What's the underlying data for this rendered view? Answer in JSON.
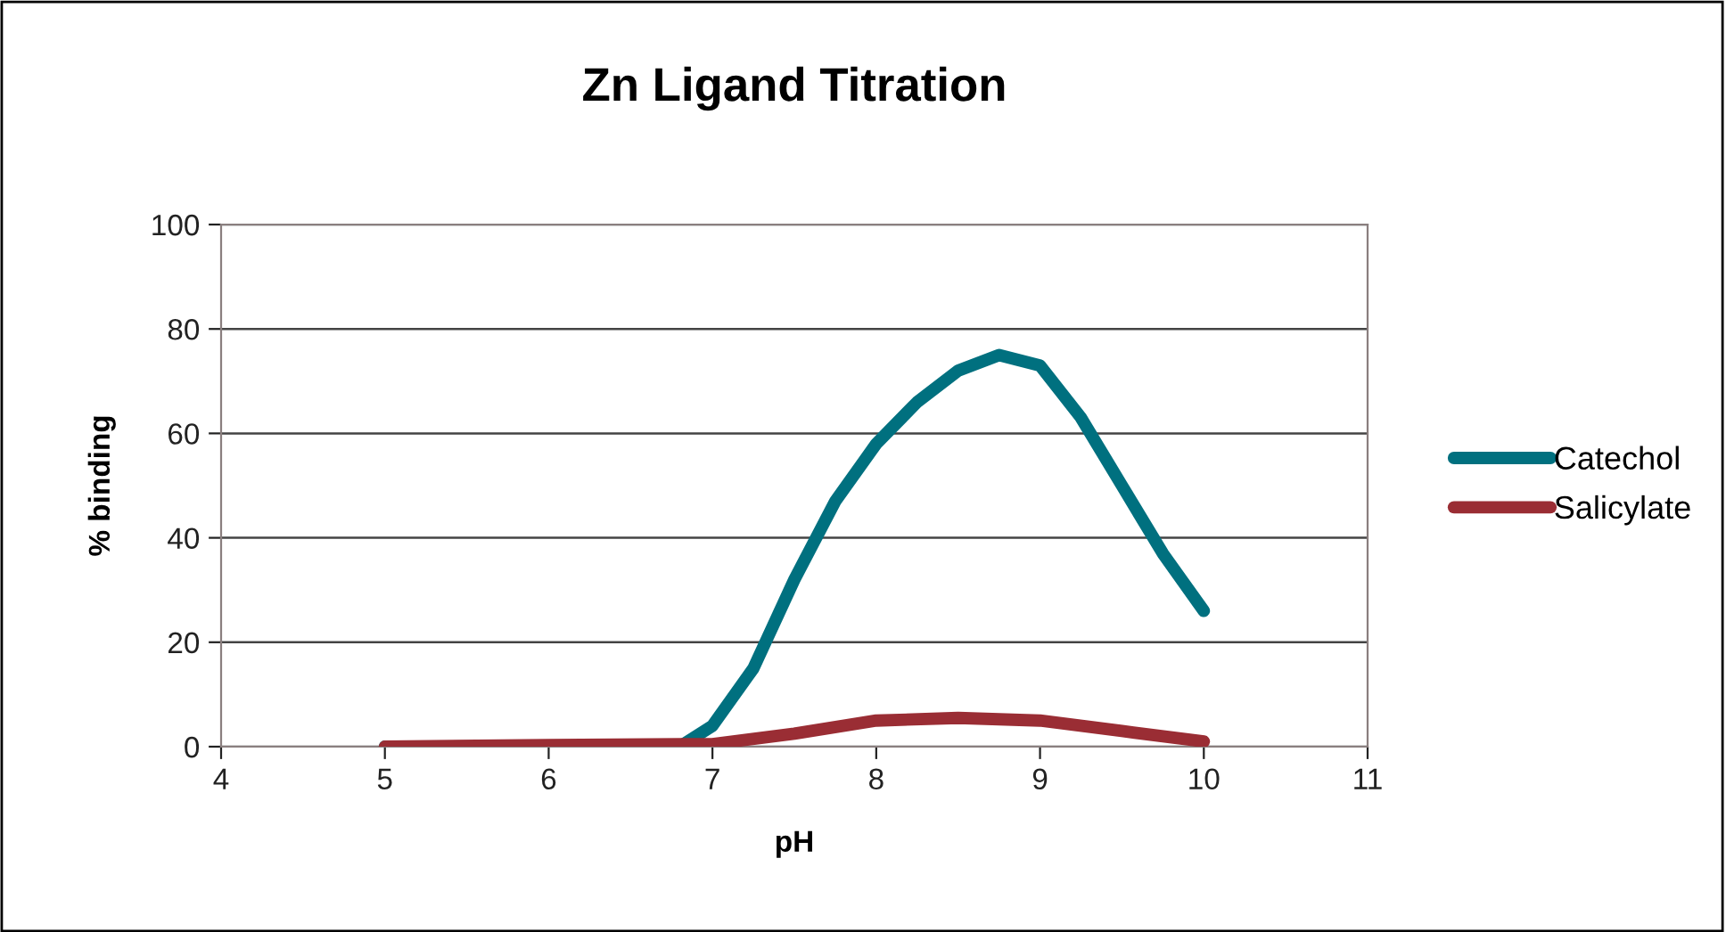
{
  "chart_data": {
    "type": "line",
    "title": "Zn Ligand Titration",
    "xlabel": "pH",
    "ylabel": "% binding",
    "xlim": [
      4,
      11
    ],
    "xticks": [
      4,
      5,
      6,
      7,
      8,
      9,
      10,
      11
    ],
    "ylim": [
      0,
      100
    ],
    "yticks": [
      0,
      20,
      40,
      60,
      80,
      100
    ],
    "grid": "y",
    "legend": "right",
    "line_style": "solid",
    "series": [
      {
        "name": "Catechol",
        "color": "#00707f",
        "x": [
          5,
          6,
          6.8,
          7.0,
          7.25,
          7.5,
          7.75,
          8,
          8.25,
          8.5,
          8.75,
          9.0,
          9.25,
          9.5,
          9.75,
          10
        ],
        "values": [
          0,
          0,
          0,
          4,
          15,
          32,
          47,
          58,
          66,
          72,
          75,
          73,
          63,
          50,
          37,
          26
        ]
      },
      {
        "name": "Salicylate",
        "color": "#9a2d34",
        "x": [
          5,
          6,
          7,
          7.5,
          8,
          8.5,
          9,
          9.5,
          10
        ],
        "values": [
          0,
          0.3,
          0.5,
          2.5,
          5,
          5.5,
          5,
          3,
          1
        ]
      }
    ]
  }
}
